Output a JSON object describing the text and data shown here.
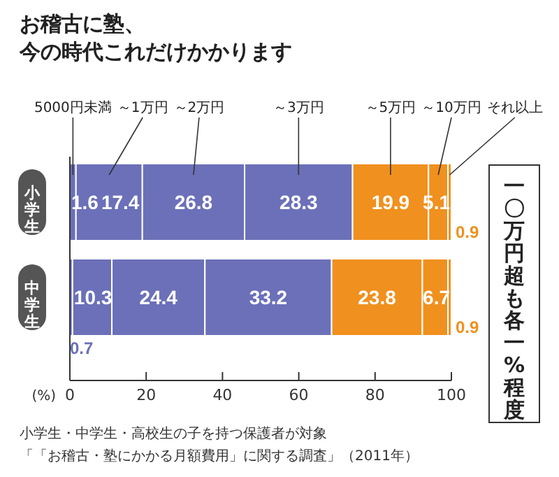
{
  "chart_data": {
    "type": "bar",
    "orientation": "horizontal",
    "stacked": true,
    "title": "お稽古に塾、",
    "subtitle": "今の時代これだけかかります",
    "xlabel": "(%)",
    "categories": [
      "小学生",
      "中学生"
    ],
    "series": [
      {
        "name": "5000円未満",
        "color": "#6b70b8",
        "values": [
          1.6,
          0.7
        ]
      },
      {
        "name": "～1万円",
        "color": "#6b70b8",
        "values": [
          17.4,
          10.3
        ]
      },
      {
        "name": "～2万円",
        "color": "#6b70b8",
        "values": [
          26.8,
          24.4
        ]
      },
      {
        "name": "～3万円",
        "color": "#6b70b8",
        "values": [
          28.3,
          33.2
        ]
      },
      {
        "name": "～5万円",
        "color": "#f0901e",
        "values": [
          19.9,
          23.8
        ]
      },
      {
        "name": "～10万円",
        "color": "#f0901e",
        "values": [
          5.1,
          6.7
        ]
      },
      {
        "name": "それ以上",
        "color": "#f0901e",
        "values": [
          0.9,
          0.9
        ]
      }
    ],
    "xlim": [
      0,
      100
    ],
    "xticks": [
      0,
      20,
      40,
      60,
      80,
      100
    ],
    "data_labels": true,
    "legend": "top",
    "annotations": [
      "一〇万円超も各一%程度",
      "小学生・中学生・高校生の子を持つ保護者が対象",
      "「「お稽古・塾にかかる月額費用」に関する調査」（2011年）"
    ]
  }
}
